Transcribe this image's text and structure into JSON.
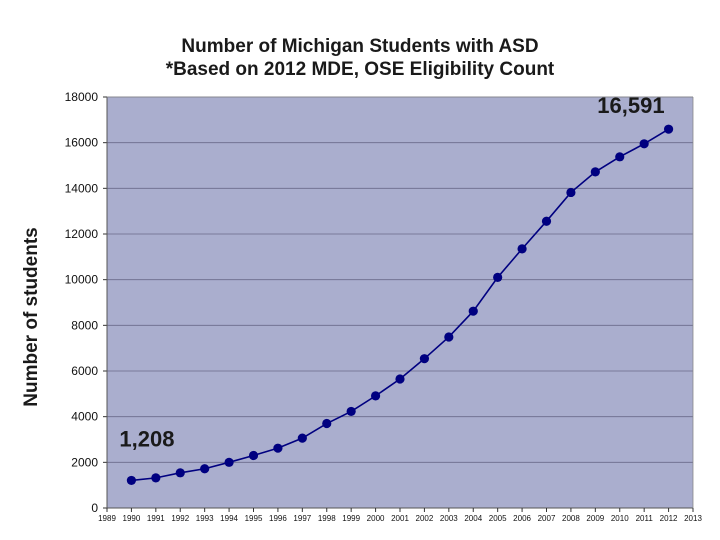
{
  "chart_data": {
    "type": "line",
    "title": "Number of Michigan Students with ASD",
    "subtitle": "*Based on 2012 MDE, OSE Eligibility Count",
    "xlabel": "",
    "ylabel": "Number of students",
    "x_ticks": [
      "1989",
      "1990",
      "1991",
      "1992",
      "1993",
      "1994",
      "1995",
      "1996",
      "1997",
      "1998",
      "1999",
      "2000",
      "2001",
      "2002",
      "2003",
      "2004",
      "2005",
      "2006",
      "2007",
      "2008",
      "2009",
      "2010",
      "2011",
      "2012",
      "2013"
    ],
    "x": [
      1990,
      1991,
      1992,
      1993,
      1994,
      1995,
      1996,
      1997,
      1998,
      1999,
      2000,
      2001,
      2002,
      2003,
      2004,
      2005,
      2006,
      2007,
      2008,
      2009,
      2010,
      2011,
      2012
    ],
    "series": [
      {
        "name": "",
        "values": [
          1208,
          1320,
          1540,
          1720,
          2000,
          2300,
          2620,
          3060,
          3700,
          4230,
          4910,
          5650,
          6540,
          7490,
          8620,
          10100,
          11350,
          12560,
          13820,
          14720,
          15380,
          15950,
          16591
        ]
      }
    ],
    "ylim": [
      0,
      18000
    ],
    "xlim": [
      1989,
      2013
    ],
    "y_ticks": [
      0,
      2000,
      4000,
      6000,
      8000,
      10000,
      12000,
      14000,
      16000,
      18000
    ],
    "grid": true,
    "annotations": [
      {
        "text": "1,208",
        "x": 1990,
        "y": 1208
      },
      {
        "text": "16,591",
        "x": 2012,
        "y": 16591
      }
    ],
    "colors": {
      "plot_bg": "#aaaece",
      "line": "#000080",
      "marker": "#000080",
      "grid": "#6a6a8a"
    }
  }
}
